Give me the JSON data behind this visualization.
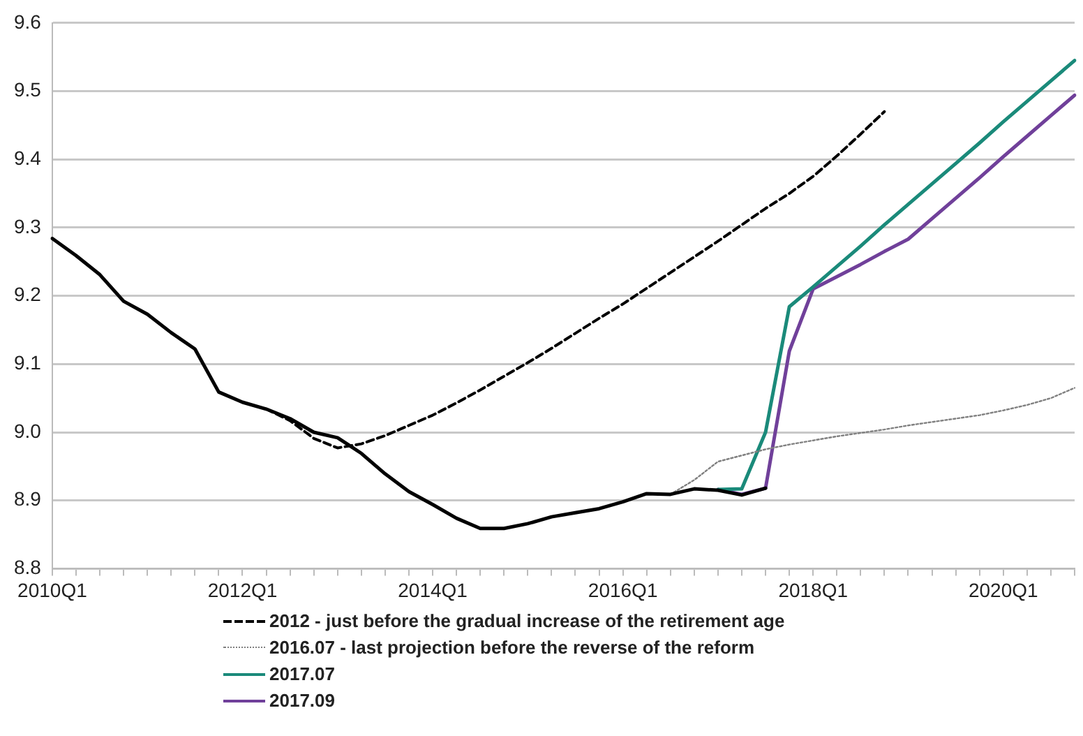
{
  "chart_data": {
    "type": "line",
    "categories": [
      "2010Q1",
      null,
      null,
      null,
      null,
      null,
      null,
      null,
      "2012Q1",
      null,
      null,
      null,
      null,
      null,
      null,
      null,
      "2014Q1",
      null,
      null,
      null,
      null,
      null,
      null,
      null,
      "2016Q1",
      null,
      null,
      null,
      null,
      null,
      null,
      null,
      "2018Q1",
      null,
      null,
      null,
      null,
      null,
      null,
      null,
      "2020Q1",
      null,
      null,
      null
    ],
    "ylim": [
      8.8,
      9.6
    ],
    "yticks": [
      8.8,
      8.9,
      {
        "value": 9,
        "label": "9.0"
      },
      9.1,
      9.2,
      9.3,
      9.4,
      9.5,
      9.6
    ],
    "grid": "y",
    "legend": "bottom",
    "marker": "none",
    "series": [
      {
        "color": "#000000",
        "line_style": "solid",
        "values": [
          9.284,
          9.259,
          9.231,
          9.192,
          9.173,
          9.146,
          9.122,
          9.059,
          9.044,
          9.034,
          9.02,
          9.0,
          8.992,
          8.969,
          8.939,
          8.913,
          8.894,
          8.874,
          8.859,
          8.859,
          8.866,
          8.876,
          8.882,
          8.888,
          8.898,
          8.91,
          8.909,
          8.917,
          8.915,
          8.908,
          8.918,
          null,
          null,
          null,
          null,
          null,
          null,
          null,
          null,
          null,
          null,
          null,
          null,
          null
        ]
      },
      {
        "name": "2012 - just before the gradual increase of the retirement age",
        "color": "#000000",
        "line_style": "dashed",
        "values": [
          null,
          null,
          null,
          null,
          null,
          null,
          null,
          null,
          null,
          9.034,
          9.017,
          8.991,
          8.977,
          8.983,
          8.995,
          9.01,
          9.025,
          9.043,
          9.062,
          9.082,
          9.102,
          9.123,
          9.145,
          9.167,
          9.188,
          9.211,
          9.234,
          9.257,
          9.28,
          9.304,
          9.328,
          9.35,
          9.375,
          9.405,
          9.437,
          9.47,
          null,
          null,
          null,
          null,
          null,
          null,
          null,
          null
        ]
      },
      {
        "name": "2016.07 - last projection before the reverse of the reform",
        "color": "#808080",
        "line_style": "dotted",
        "values": [
          null,
          null,
          null,
          null,
          null,
          null,
          null,
          null,
          null,
          null,
          null,
          null,
          null,
          null,
          null,
          null,
          null,
          null,
          null,
          null,
          null,
          null,
          null,
          null,
          null,
          null,
          8.909,
          8.93,
          8.957,
          8.966,
          8.975,
          8.982,
          8.988,
          8.994,
          8.999,
          9.004,
          9.01,
          9.015,
          9.02,
          9.025,
          9.032,
          9.04,
          9.05,
          9.065
        ]
      },
      {
        "name": "2017.07",
        "color": "#1a8a7a",
        "line_style": "solid",
        "values": [
          null,
          null,
          null,
          null,
          null,
          null,
          null,
          null,
          null,
          null,
          null,
          null,
          null,
          null,
          null,
          null,
          null,
          null,
          null,
          null,
          null,
          null,
          null,
          null,
          null,
          null,
          null,
          null,
          8.916,
          8.917,
          9.0,
          9.184,
          9.213,
          9.243,
          9.273,
          9.304,
          9.334,
          9.364,
          9.394,
          9.424,
          9.455,
          9.485,
          9.515,
          9.545
        ]
      },
      {
        "name": "2017.09",
        "color": "#70409a",
        "line_style": "solid",
        "values": [
          null,
          null,
          null,
          null,
          null,
          null,
          null,
          null,
          null,
          null,
          null,
          null,
          null,
          null,
          null,
          null,
          null,
          null,
          null,
          null,
          null,
          null,
          null,
          null,
          null,
          null,
          null,
          null,
          8.916,
          8.909,
          8.918,
          9.119,
          9.21,
          9.228,
          9.246,
          9.265,
          9.283,
          9.313,
          9.343,
          9.373,
          9.404,
          9.434,
          9.464,
          9.494
        ]
      }
    ]
  }
}
